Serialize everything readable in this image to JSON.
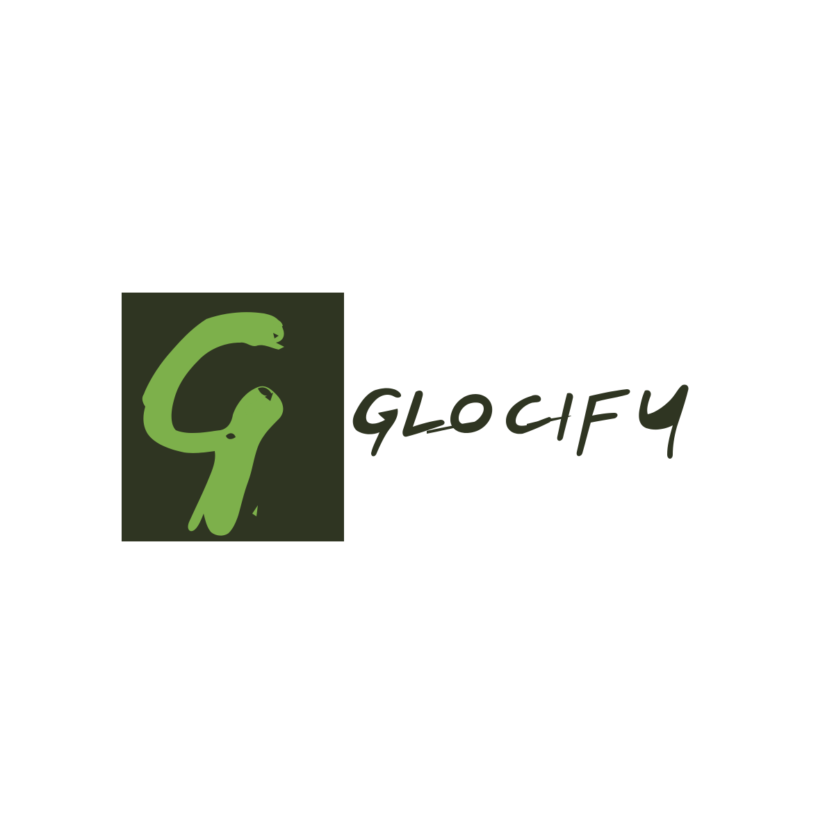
{
  "logo": {
    "brand_name": "GLOCIFY",
    "emblem_letter": "G",
    "colors": {
      "background": "#ffffff",
      "emblem_square": "#2f3522",
      "emblem_letter": "#7db04b",
      "wordmark": "#2f3522"
    }
  }
}
